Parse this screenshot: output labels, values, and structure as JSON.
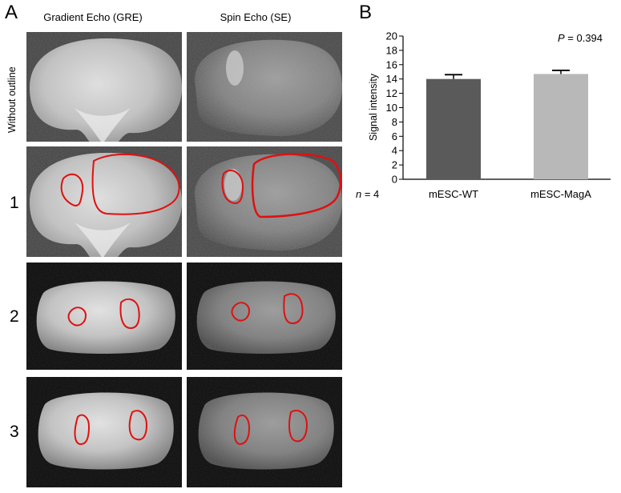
{
  "panels": {
    "a_label": "A",
    "b_label": "B"
  },
  "panel_a": {
    "col_headers": [
      "Gradient Echo (GRE)",
      "Spin Echo (SE)"
    ],
    "row_labels": [
      "Without outline",
      "1",
      "2",
      "3"
    ],
    "outline_color": "#e01010"
  },
  "panel_b": {
    "p_italic": "P",
    "p_rest": " = 0.394",
    "n_italic": "n",
    "n_rest": " = 4"
  },
  "chart_data": {
    "type": "bar",
    "categories": [
      "mESC-WT",
      "mESC-MagA"
    ],
    "values": [
      14.0,
      14.7
    ],
    "errors": [
      0.6,
      0.5
    ],
    "colors": [
      "#5a5a5a",
      "#b8b8b8"
    ],
    "ylabel": "Signal intensity",
    "xlabel": "",
    "ylim": [
      0,
      20
    ],
    "yticks": [
      0,
      2,
      4,
      6,
      8,
      10,
      12,
      14,
      16,
      18,
      20
    ],
    "annotation": "P = 0.394",
    "grid": false
  }
}
